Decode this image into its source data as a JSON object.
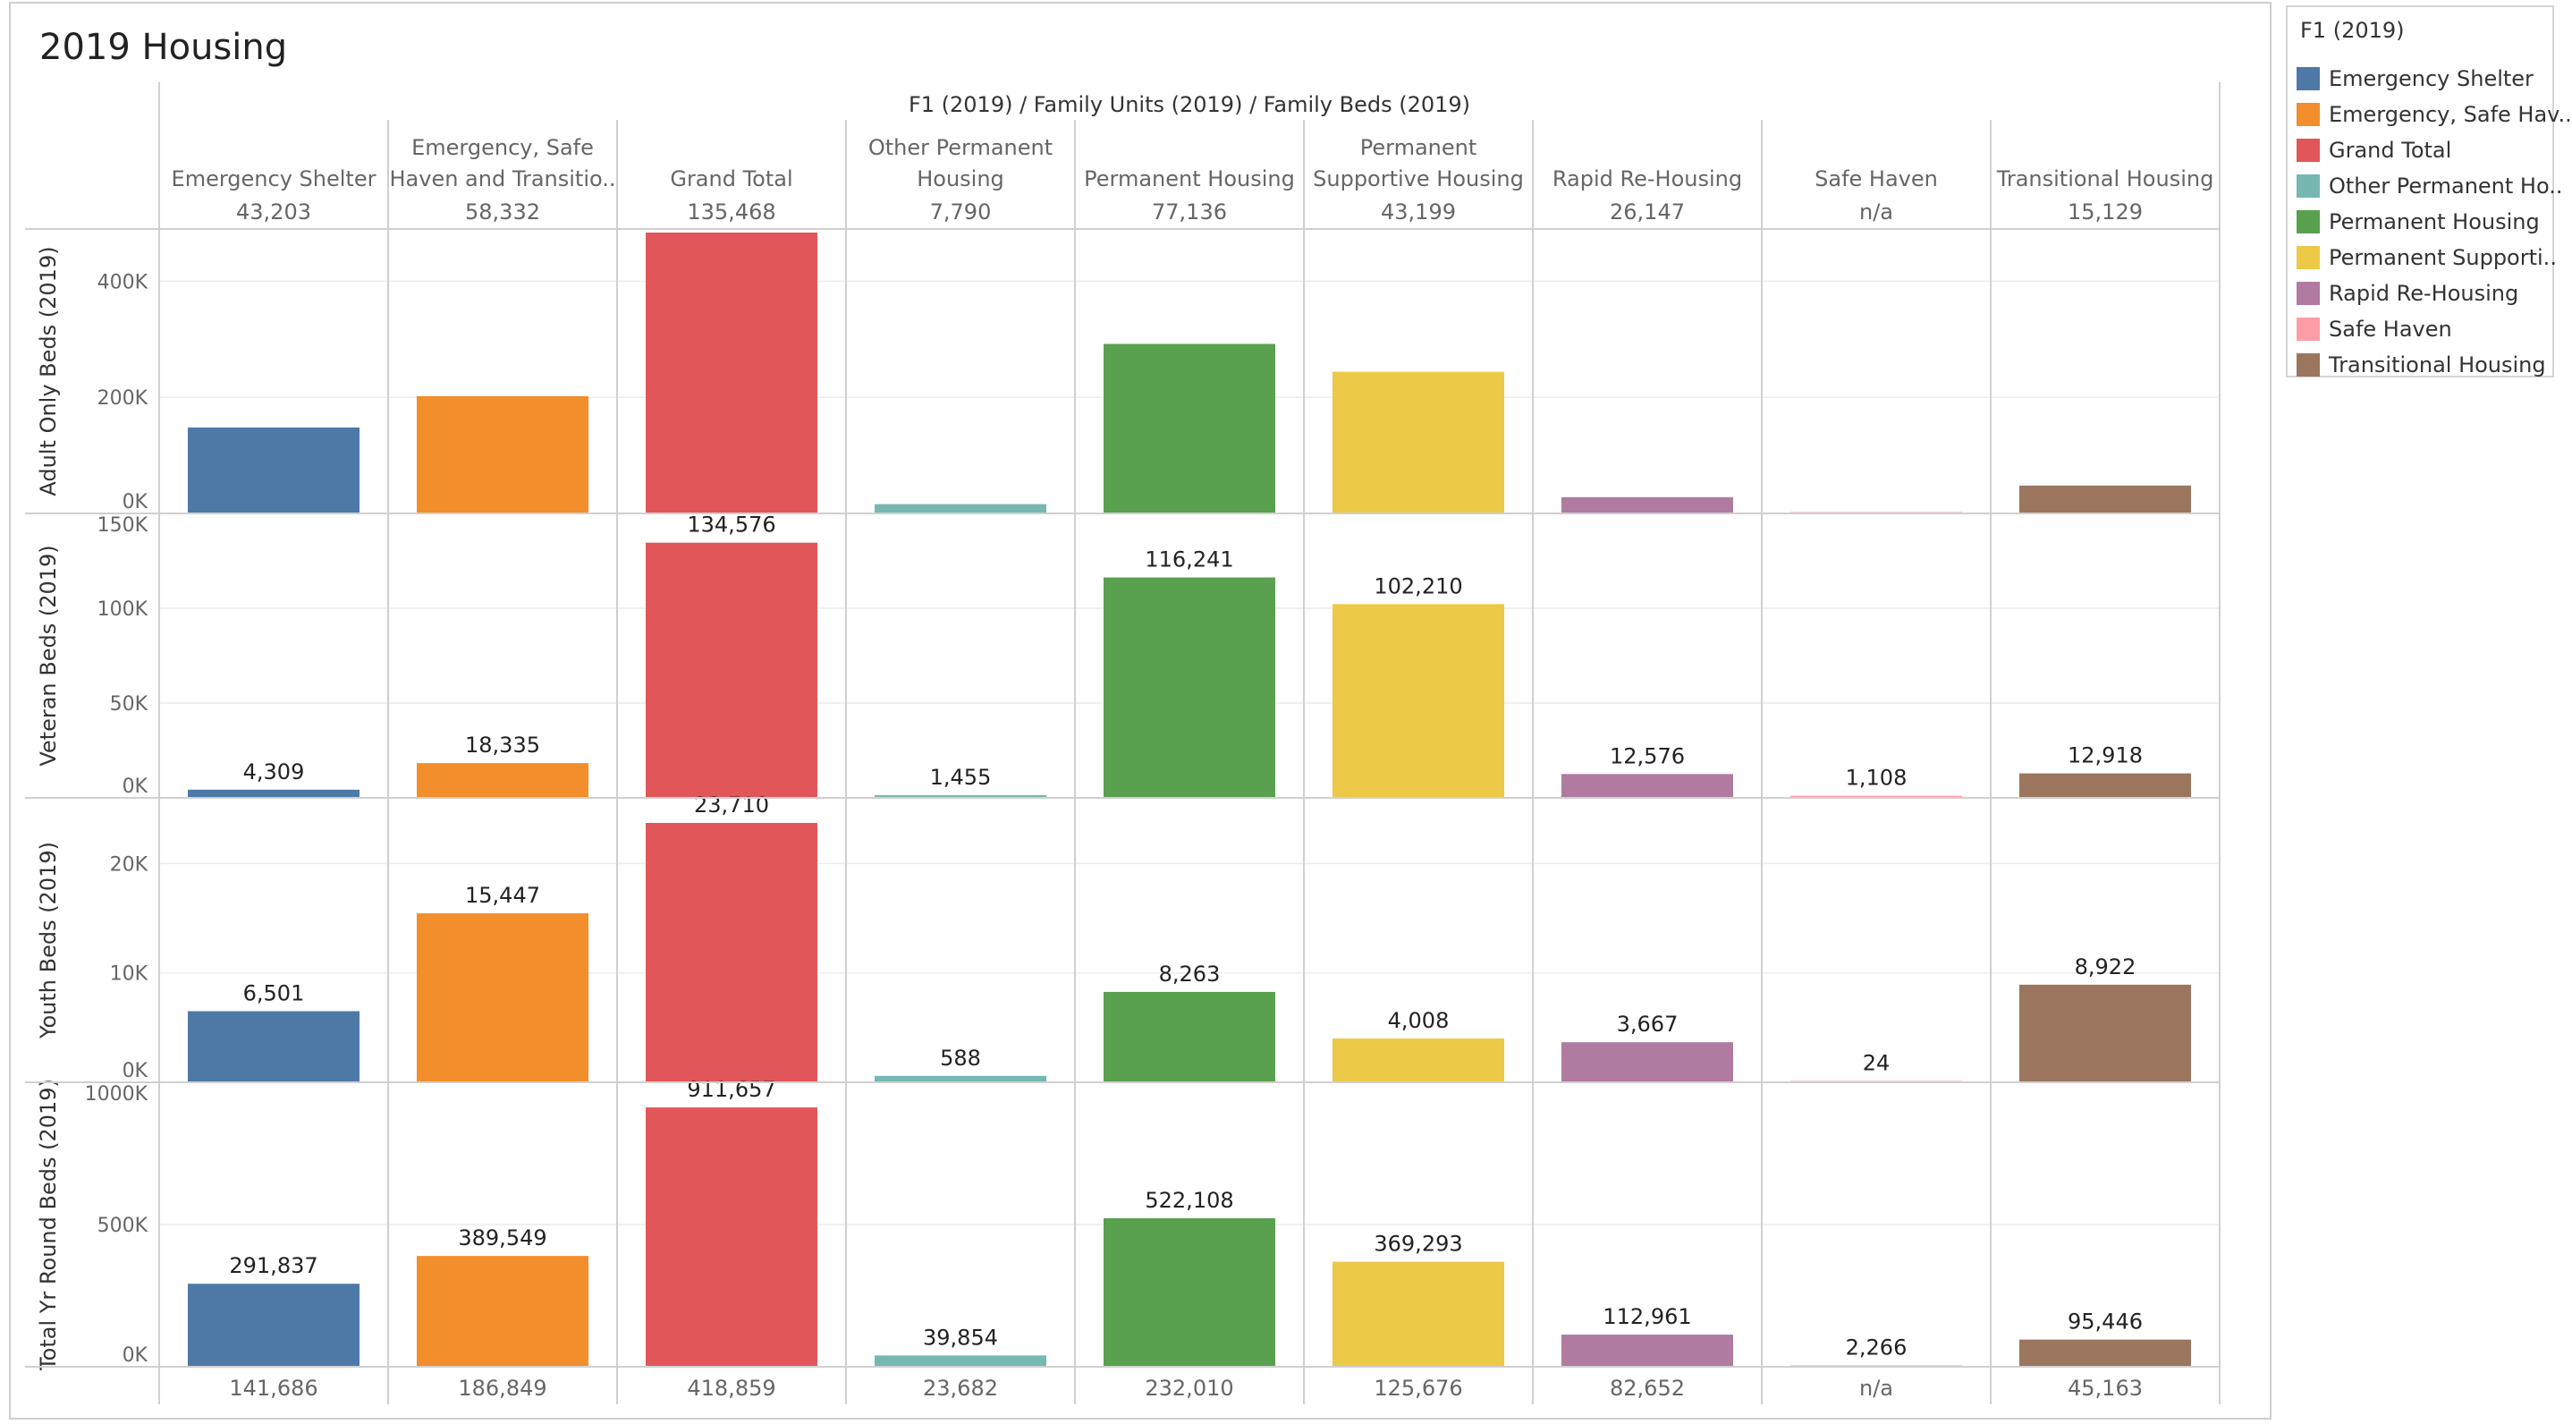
{
  "page": {
    "title": "2019 Housing"
  },
  "legend": {
    "title": "F1 (2019)",
    "items": [
      {
        "label": "Emergency Shelter",
        "color": "#4e79a7"
      },
      {
        "label": "Emergency, Safe Hav..",
        "color": "#f28e2b"
      },
      {
        "label": "Grand Total",
        "color": "#e15759"
      },
      {
        "label": "Other Permanent Ho..",
        "color": "#76b7b2"
      },
      {
        "label": "Permanent Housing",
        "color": "#59a14f"
      },
      {
        "label": "Permanent Supporti..",
        "color": "#edc948"
      },
      {
        "label": "Rapid Re-Housing",
        "color": "#b07aa1"
      },
      {
        "label": "Safe Haven",
        "color": "#ff9da7"
      },
      {
        "label": "Transitional Housing",
        "color": "#9c755f"
      }
    ]
  },
  "chart_data": {
    "type": "bar",
    "column_header": "F1 (2019)  /  Family Units (2019)  /  Family Beds (2019)",
    "categories": [
      [
        "Emergency Shelter"
      ],
      [
        "Emergency, Safe",
        "Haven and Transitio.."
      ],
      [
        "Grand Total"
      ],
      [
        "Other Permanent",
        "Housing"
      ],
      [
        "Permanent Housing"
      ],
      [
        "Permanent",
        "Supportive Housing"
      ],
      [
        "Rapid Re-Housing"
      ],
      [
        "Safe Haven"
      ],
      [
        "Transitional Housing"
      ]
    ],
    "colors": [
      "#4e79a7",
      "#f28e2b",
      "#e15759",
      "#76b7b2",
      "#59a14f",
      "#edc948",
      "#b07aa1",
      "#ff9da7",
      "#9c755f"
    ],
    "family_units": [
      "43,203",
      "58,332",
      "135,468",
      "7,790",
      "77,136",
      "43,199",
      "26,147",
      "n/a",
      "15,129"
    ],
    "family_beds": [
      "141,686",
      "186,849",
      "418,859",
      "23,682",
      "232,010",
      "125,676",
      "82,652",
      "n/a",
      "45,163"
    ],
    "rows": [
      {
        "name": "Adult Only Beds (2019)",
        "ylim": [
          0,
          490000
        ],
        "ticks": [
          0,
          200000,
          400000
        ],
        "tick_labels": [
          "0K",
          "200K",
          "400K"
        ],
        "values": [
          148000,
          202000,
          490000,
          16000,
          292000,
          244000,
          28000,
          2000,
          48000
        ],
        "labels": [
          "",
          "",
          "",
          "",
          "",
          "",
          "",
          "",
          ""
        ]
      },
      {
        "name": "Veteran Beds (2019)",
        "ylim": [
          0,
          150000
        ],
        "ticks": [
          0,
          50000,
          100000,
          150000
        ],
        "tick_labels": [
          "0K",
          "50K",
          "100K",
          "150K"
        ],
        "values": [
          4309,
          18335,
          134576,
          1455,
          116241,
          102210,
          12576,
          1108,
          12918
        ],
        "labels": [
          "4,309",
          "18,335",
          "134,576",
          "1,455",
          "116,241",
          "102,210",
          "12,576",
          "1,108",
          "12,918"
        ]
      },
      {
        "name": "Youth Beds (2019)",
        "ylim": [
          0,
          26000
        ],
        "ticks": [
          0,
          10000,
          20000
        ],
        "tick_labels": [
          "0K",
          "10K",
          "20K"
        ],
        "values": [
          6501,
          15447,
          23710,
          588,
          8263,
          4008,
          3667,
          24,
          8922
        ],
        "labels": [
          "6,501",
          "15,447",
          "23,710",
          "588",
          "8,263",
          "4,008",
          "3,667",
          "24",
          "8,922"
        ]
      },
      {
        "name": "Total Yr Round Beds (2019)",
        "ylim": [
          0,
          1000000
        ],
        "ticks": [
          0,
          500000,
          1000000
        ],
        "tick_labels": [
          "0K",
          "500K",
          "1000K"
        ],
        "values": [
          291837,
          389549,
          911657,
          39854,
          522108,
          369293,
          112961,
          2266,
          95446
        ],
        "labels": [
          "291,837",
          "389,549",
          "911,657",
          "39,854",
          "522,108",
          "369,293",
          "112,961",
          "2,266",
          "95,446"
        ]
      }
    ]
  }
}
